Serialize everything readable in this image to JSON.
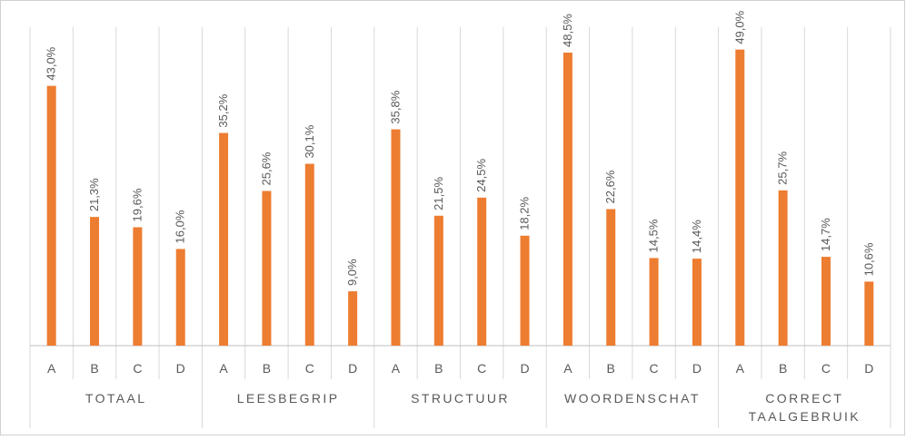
{
  "colors": {
    "bar": "#ED7D31",
    "grid": "#D9D9D9",
    "text": "#595959",
    "border": "#D0D0D0"
  },
  "chart_data": {
    "type": "bar",
    "ylim": [
      0,
      50
    ],
    "grid": true,
    "legend": "none",
    "groups": [
      {
        "label_lines": [
          "TOTAAL"
        ],
        "categories": [
          "A",
          "B",
          "C",
          "D"
        ],
        "values": [
          43.0,
          21.3,
          19.6,
          16.0
        ],
        "labels": [
          "43,0%",
          "21,3%",
          "19,6%",
          "16,0%"
        ]
      },
      {
        "label_lines": [
          "LEESBEGRIP"
        ],
        "categories": [
          "A",
          "B",
          "C",
          "D"
        ],
        "values": [
          35.2,
          25.6,
          30.1,
          9.0
        ],
        "labels": [
          "35,2%",
          "25,6%",
          "30,1%",
          "9,0%"
        ]
      },
      {
        "label_lines": [
          "STRUCTUUR"
        ],
        "categories": [
          "A",
          "B",
          "C",
          "D"
        ],
        "values": [
          35.8,
          21.5,
          24.5,
          18.2
        ],
        "labels": [
          "35,8%",
          "21,5%",
          "24,5%",
          "18,2%"
        ]
      },
      {
        "label_lines": [
          "WOORDENSCHAT"
        ],
        "categories": [
          "A",
          "B",
          "C",
          "D"
        ],
        "values": [
          48.5,
          22.6,
          14.5,
          14.4
        ],
        "labels": [
          "48,5%",
          "22,6%",
          "14,5%",
          "14,4%"
        ]
      },
      {
        "label_lines": [
          "CORRECT",
          "TAALGEBRUIK"
        ],
        "categories": [
          "A",
          "B",
          "C",
          "D"
        ],
        "values": [
          49.0,
          25.7,
          14.7,
          10.6
        ],
        "labels": [
          "49,0%",
          "25,7%",
          "14,7%",
          "10,6%"
        ]
      }
    ]
  }
}
